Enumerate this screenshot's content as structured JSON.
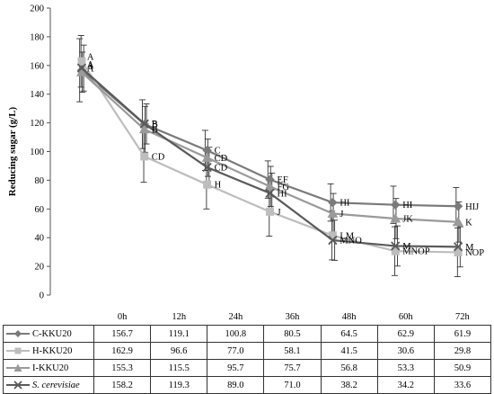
{
  "chart_data": {
    "type": "line",
    "ylabel": "Reducing sugar (g/L)",
    "ylim": [
      0,
      200
    ],
    "yticks": [
      0,
      20,
      40,
      60,
      80,
      100,
      120,
      140,
      160,
      180,
      200
    ],
    "categories": [
      "0h",
      "12h",
      "24h",
      "36h",
      "48h",
      "60h",
      "72h"
    ],
    "series": [
      {
        "name": "C-KKU20",
        "marker": "diamond",
        "color": "#7a7a7a",
        "values": [
          156.7,
          119.1,
          100.8,
          80.5,
          64.5,
          62.9,
          61.9
        ],
        "errors": [
          22,
          17,
          14,
          13,
          13,
          13,
          13
        ],
        "letters": [
          "A",
          "B",
          "C",
          "EF",
          "HI",
          "HI",
          "HIJ"
        ]
      },
      {
        "name": "H-KKU20",
        "marker": "square",
        "color": "#bdbdbd",
        "values": [
          162.9,
          96.6,
          77.0,
          58.1,
          41.5,
          30.6,
          29.8
        ],
        "errors": [
          18,
          18,
          17,
          17,
          17,
          17,
          17
        ],
        "letters": [
          "A",
          "CD",
          "H",
          "J",
          "LM",
          "MNOP",
          "NOP"
        ]
      },
      {
        "name": "I-KKU20",
        "marker": "triangle",
        "color": "#9a9a9a",
        "values": [
          155.3,
          115.5,
          95.7,
          75.7,
          56.8,
          53.3,
          50.9
        ],
        "errors": [
          14,
          16,
          13,
          14,
          14,
          14,
          14
        ],
        "letters": [
          "A",
          "B",
          "CD",
          "FG",
          "J",
          "JK",
          "K"
        ]
      },
      {
        "name": "S. cerevisiae",
        "marker": "x",
        "color": "#5a5a5a",
        "values": [
          158.2,
          119.3,
          89.0,
          71.0,
          38.2,
          34.2,
          33.6
        ],
        "errors": [
          16,
          14,
          14,
          14,
          14,
          14,
          14
        ],
        "letters": [
          "A",
          "B",
          "CD",
          "HI",
          "MNO",
          "M",
          "M"
        ]
      }
    ]
  }
}
